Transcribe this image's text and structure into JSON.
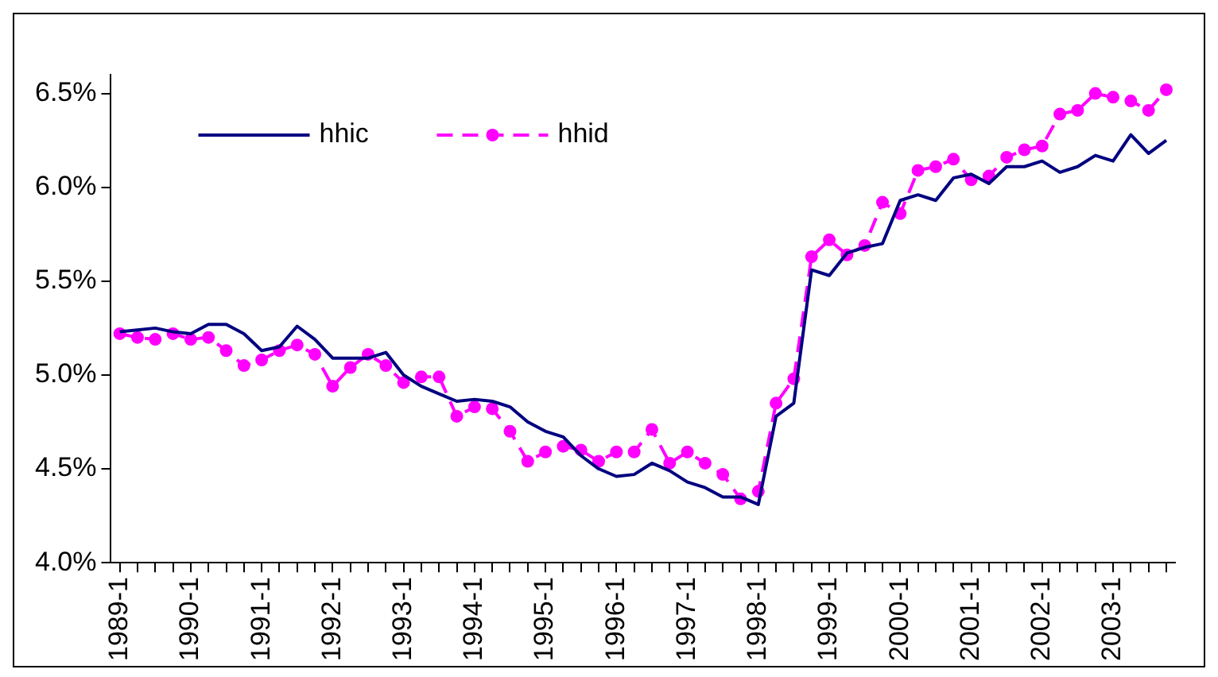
{
  "chart_data": {
    "type": "line",
    "categories": [
      "1989-1",
      null,
      null,
      null,
      "1990-1",
      null,
      null,
      null,
      "1991-1",
      null,
      null,
      null,
      "1992-1",
      null,
      null,
      null,
      "1993-1",
      null,
      null,
      null,
      "1994-1",
      null,
      null,
      null,
      "1995-1",
      null,
      null,
      null,
      "1996-1",
      null,
      null,
      null,
      "1997-1",
      null,
      null,
      null,
      "1998-1",
      null,
      null,
      null,
      "1999-1",
      null,
      null,
      null,
      "2000-1",
      null,
      null,
      null,
      "2001-1",
      null,
      null,
      null,
      "2002-1",
      null,
      null,
      null,
      "2003-1",
      null,
      null,
      null
    ],
    "series": [
      {
        "name": "hhic",
        "color": "#000080",
        "marker": "none",
        "line_style": "solid",
        "values": [
          5.23,
          5.24,
          5.25,
          5.23,
          5.22,
          5.27,
          5.27,
          5.22,
          5.13,
          5.15,
          5.26,
          5.19,
          5.09,
          5.09,
          5.09,
          5.12,
          5.0,
          4.94,
          4.9,
          4.86,
          4.87,
          4.86,
          4.83,
          4.75,
          4.7,
          4.67,
          4.57,
          4.5,
          4.46,
          4.47,
          4.53,
          4.49,
          4.43,
          4.4,
          4.35,
          4.35,
          4.31,
          4.78,
          4.85,
          5.56,
          5.53,
          5.65,
          5.68,
          5.7,
          5.93,
          5.96,
          5.93,
          6.05,
          6.07,
          6.02,
          6.11,
          6.11,
          6.14,
          6.08,
          6.11,
          6.17,
          6.14,
          6.28,
          6.18,
          6.25
        ]
      },
      {
        "name": "hhid",
        "color": "#ff00ff",
        "marker": "circle",
        "line_style": "dashed",
        "values": [
          5.22,
          5.2,
          5.19,
          5.22,
          5.19,
          5.2,
          5.13,
          5.05,
          5.08,
          5.13,
          5.16,
          5.11,
          4.94,
          5.04,
          5.11,
          5.05,
          4.96,
          4.99,
          4.99,
          4.78,
          4.83,
          4.82,
          4.7,
          4.54,
          4.59,
          4.62,
          4.6,
          4.54,
          4.59,
          4.59,
          4.71,
          4.53,
          4.59,
          4.53,
          4.47,
          4.34,
          4.38,
          4.85,
          4.98,
          5.63,
          5.72,
          5.64,
          5.69,
          5.92,
          5.86,
          6.09,
          6.11,
          6.15,
          6.04,
          6.06,
          6.16,
          6.2,
          6.22,
          6.39,
          6.41,
          6.5,
          6.48,
          6.46,
          6.41,
          6.52
        ]
      }
    ],
    "ylim": [
      4.0,
      6.6
    ],
    "yticks": [
      {
        "value": 4.0,
        "label": "4.0%"
      },
      {
        "value": 4.5,
        "label": "4.5%"
      },
      {
        "value": 5.0,
        "label": "5.0%"
      },
      {
        "value": 5.5,
        "label": "5.5%"
      },
      {
        "value": 6.0,
        "label": "6.0%"
      },
      {
        "value": 6.5,
        "label": "6.5%"
      }
    ],
    "legend": "top left"
  }
}
